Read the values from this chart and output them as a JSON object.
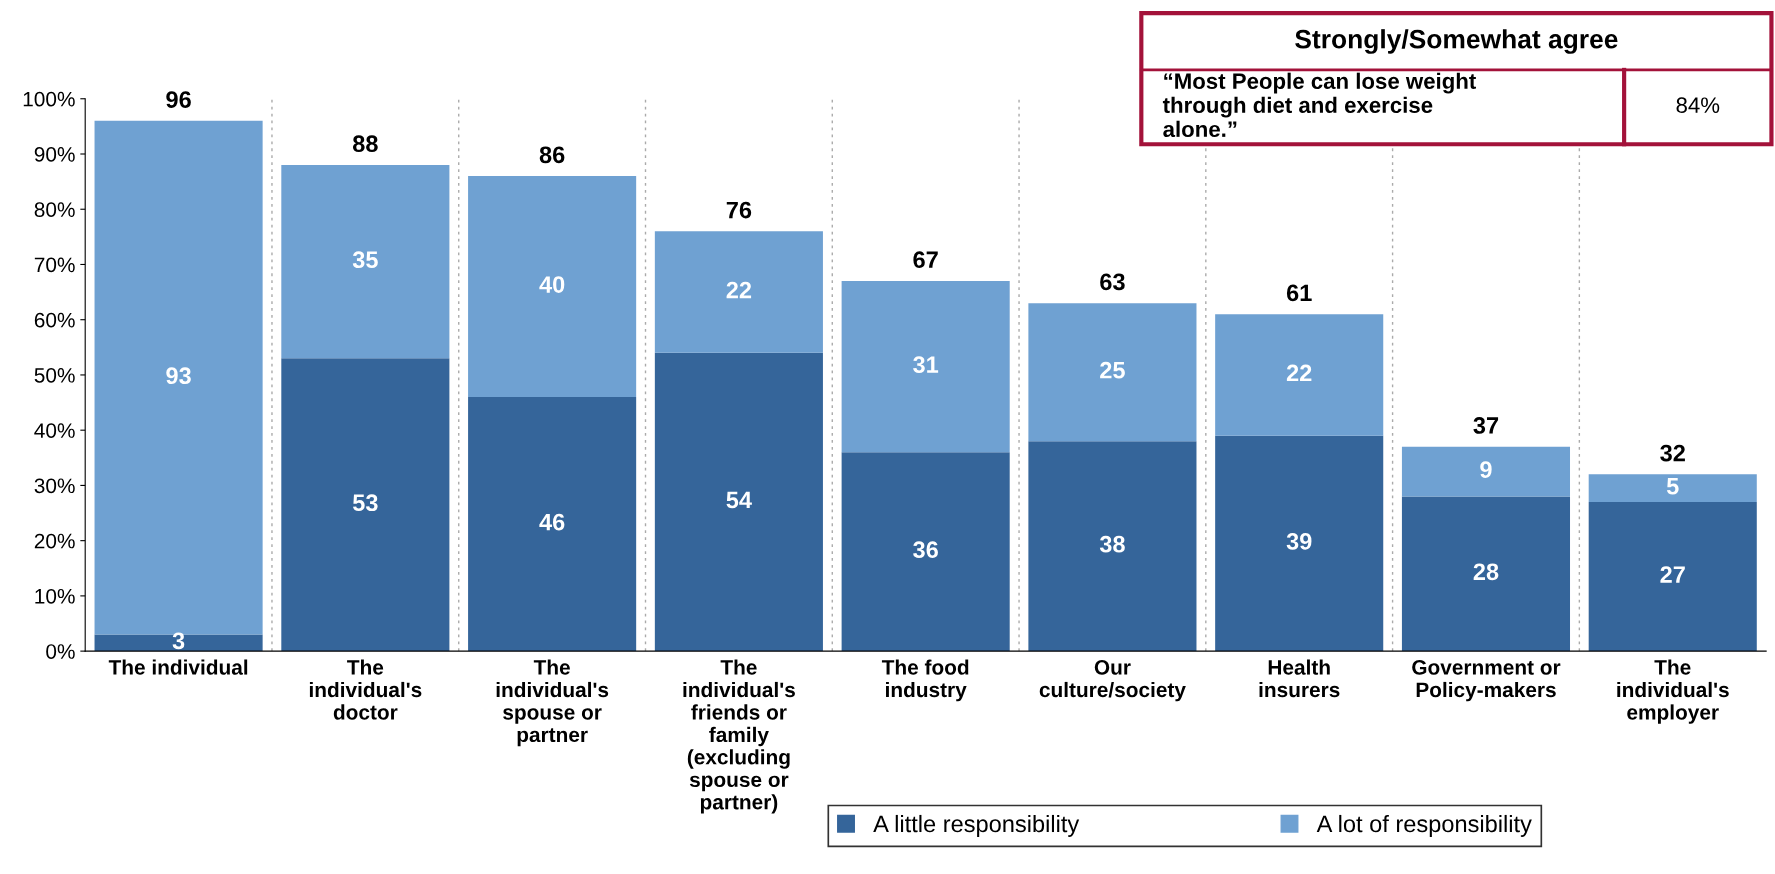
{
  "chart_data": {
    "type": "bar",
    "stacked": true,
    "categories": [
      "The individual",
      "The individual's doctor",
      "The individual's spouse or partner",
      "The individual's friends or family (excluding spouse or partner)",
      "The food industry",
      "Our culture/society",
      "Health insurers",
      "Government or Policy-makers",
      "The individual's employer"
    ],
    "series": [
      {
        "name": "A little responsibility",
        "color": "#35659a",
        "values": [
          3,
          53,
          46,
          54,
          36,
          38,
          39,
          28,
          27
        ]
      },
      {
        "name": "A lot of responsibility",
        "color": "#6fa1d2",
        "values": [
          93,
          35,
          40,
          22,
          31,
          25,
          22,
          9,
          5
        ]
      }
    ],
    "totals": [
      "96",
      "88",
      "86",
      "76",
      "67",
      "63",
      "61",
      "37",
      "32"
    ],
    "data_labels": true,
    "ylim": [
      0,
      100
    ],
    "yticks": [
      {
        "value": 0,
        "label": "0%"
      },
      {
        "value": 10,
        "label": "10%"
      },
      {
        "value": 20,
        "label": "20%"
      },
      {
        "value": 30,
        "label": "30%"
      },
      {
        "value": 40,
        "label": "40%"
      },
      {
        "value": 50,
        "label": "50%"
      },
      {
        "value": 60,
        "label": "60%"
      },
      {
        "value": 70,
        "label": "70%"
      },
      {
        "value": 80,
        "label": "80%"
      },
      {
        "value": 90,
        "label": "90%"
      },
      {
        "value": 100,
        "label": "100%"
      }
    ],
    "grid": "x",
    "legend": "bottom right",
    "annotations": [
      "Strongly/Somewhat agree",
      "“Most People can lose weight through diet and exercise alone.”",
      "84%"
    ]
  }
}
